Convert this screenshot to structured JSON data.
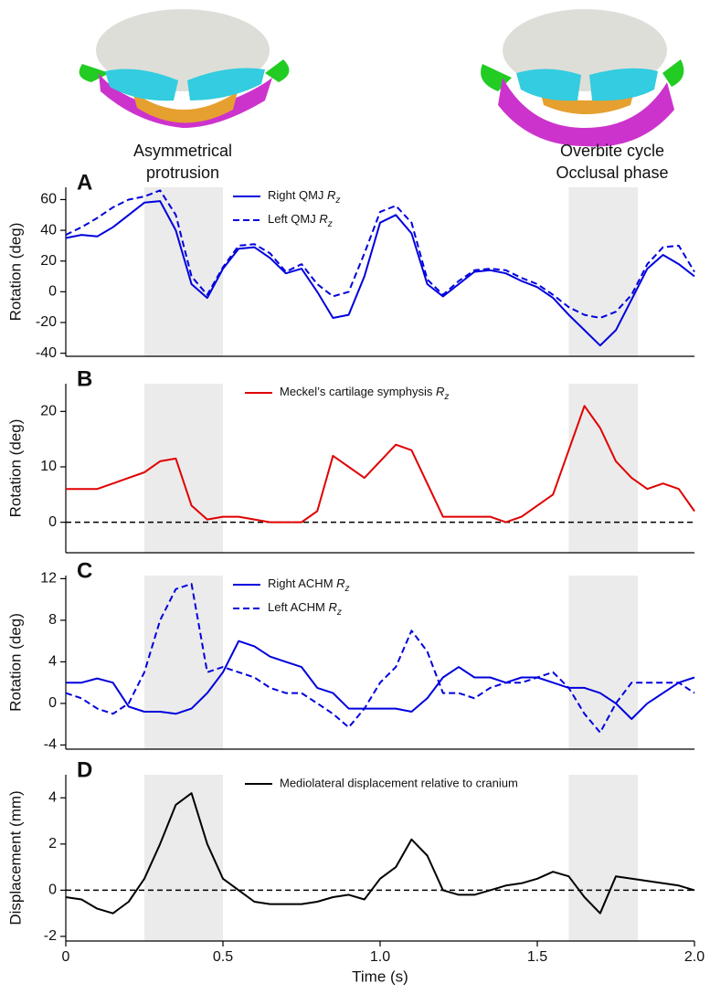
{
  "illustrations": [
    {
      "caption": [
        "Asymmetrical",
        "protrusion"
      ]
    },
    {
      "caption": [
        "Overbite cycle",
        "Occlusal phase"
      ]
    }
  ],
  "chart_data": [
    {
      "type": "line",
      "panel_label": "A",
      "y_label": "Rotation (deg)",
      "legend": "top center",
      "x": [
        0,
        0.05,
        0.1,
        0.15,
        0.2,
        0.25,
        0.3,
        0.35,
        0.4,
        0.45,
        0.5,
        0.55,
        0.6,
        0.65,
        0.7,
        0.75,
        0.8,
        0.85,
        0.9,
        0.95,
        1.0,
        1.05,
        1.1,
        1.15,
        1.2,
        1.25,
        1.3,
        1.35,
        1.4,
        1.45,
        1.5,
        1.55,
        1.6,
        1.65,
        1.7,
        1.75,
        1.8,
        1.85,
        1.9,
        1.95,
        2.0
      ],
      "series": [
        {
          "name": "Right QMJ Rz",
          "color": "#0000dd",
          "style": "solid",
          "values": [
            35,
            37,
            36,
            42,
            50,
            58,
            59,
            40,
            5,
            -4,
            15,
            28,
            29,
            22,
            12,
            15,
            0,
            -17,
            -15,
            10,
            45,
            50,
            38,
            5,
            -3,
            5,
            13,
            14,
            12,
            7,
            3,
            -4,
            -15,
            -25,
            -35,
            -25,
            -5,
            15,
            24,
            18,
            10
          ]
        },
        {
          "name": "Left QMJ Rz",
          "color": "#0000dd",
          "style": "dashed",
          "values": [
            37,
            42,
            48,
            55,
            60,
            62,
            66,
            50,
            10,
            -2,
            16,
            30,
            31,
            25,
            13,
            18,
            5,
            -3,
            0,
            25,
            52,
            56,
            45,
            8,
            -2,
            7,
            14,
            15,
            14,
            9,
            5,
            -2,
            -10,
            -15,
            -17,
            -13,
            -2,
            18,
            29,
            30,
            13
          ]
        }
      ],
      "xlim": [
        0,
        2
      ],
      "ylim": [
        -42,
        68
      ],
      "yticks": [
        -40,
        -20,
        0,
        20,
        40,
        60
      ],
      "highlight_ranges": [
        [
          0.25,
          0.5
        ],
        [
          1.6,
          1.82
        ]
      ]
    },
    {
      "type": "line",
      "panel_label": "B",
      "y_label": "Rotation (deg)",
      "legend": "top center",
      "x": [
        0,
        0.05,
        0.1,
        0.15,
        0.2,
        0.25,
        0.3,
        0.35,
        0.4,
        0.45,
        0.5,
        0.55,
        0.6,
        0.65,
        0.7,
        0.75,
        0.8,
        0.85,
        0.9,
        0.95,
        1.0,
        1.05,
        1.1,
        1.15,
        1.2,
        1.25,
        1.3,
        1.35,
        1.4,
        1.45,
        1.5,
        1.55,
        1.6,
        1.65,
        1.7,
        1.75,
        1.8,
        1.85,
        1.9,
        1.95,
        2.0
      ],
      "series": [
        {
          "name": "Meckel’s cartilage symphysis Rz",
          "color": "#e00000",
          "style": "solid",
          "values": [
            6,
            6,
            6,
            7,
            8,
            9,
            11,
            11.5,
            3,
            0.5,
            1,
            1,
            0.5,
            0,
            0,
            0,
            2,
            12,
            10,
            8,
            11,
            14,
            13,
            7,
            1,
            1,
            1,
            1,
            0,
            1,
            3,
            5,
            13,
            21,
            17,
            11,
            8,
            6,
            7,
            6,
            2
          ]
        }
      ],
      "xlim": [
        0,
        2
      ],
      "ylim": [
        -5.5,
        25
      ],
      "yticks": [
        0,
        10,
        20
      ],
      "reference_line": 0,
      "highlight_ranges": [
        [
          0.25,
          0.5
        ],
        [
          1.6,
          1.82
        ]
      ]
    },
    {
      "type": "line",
      "panel_label": "C",
      "y_label": "Rotation (deg)",
      "legend": "top center",
      "x": [
        0,
        0.05,
        0.1,
        0.15,
        0.2,
        0.25,
        0.3,
        0.35,
        0.4,
        0.45,
        0.5,
        0.55,
        0.6,
        0.65,
        0.7,
        0.75,
        0.8,
        0.85,
        0.9,
        0.95,
        1.0,
        1.05,
        1.1,
        1.15,
        1.2,
        1.25,
        1.3,
        1.35,
        1.4,
        1.45,
        1.5,
        1.55,
        1.6,
        1.65,
        1.7,
        1.75,
        1.8,
        1.85,
        1.9,
        1.95,
        2.0
      ],
      "series": [
        {
          "name": "Right ACHM Rz",
          "color": "#0000dd",
          "style": "solid",
          "values": [
            2,
            2,
            2.4,
            2,
            -0.3,
            -0.8,
            -0.8,
            -1,
            -0.5,
            1,
            3,
            6,
            5.5,
            4.5,
            4,
            3.5,
            1.5,
            1,
            -0.5,
            -0.5,
            -0.5,
            -0.5,
            -0.8,
            0.5,
            2.5,
            3.5,
            2.5,
            2.5,
            2,
            2.5,
            2.5,
            2,
            1.5,
            1.5,
            1,
            0,
            -1.5,
            0,
            1,
            2,
            2.5
          ]
        },
        {
          "name": "Left ACHM Rz",
          "color": "#0000dd",
          "style": "dashed",
          "values": [
            1,
            0.5,
            -0.5,
            -1,
            0,
            3,
            8,
            11,
            11.5,
            3,
            3.5,
            3,
            2.5,
            1.5,
            1,
            1,
            0,
            -1,
            -2.3,
            -0.5,
            2,
            3.5,
            7,
            5,
            1,
            1,
            0.5,
            1.5,
            2,
            2,
            2.5,
            3,
            1.5,
            -1,
            -2.8,
            0,
            2,
            2,
            2,
            2,
            1
          ]
        }
      ],
      "xlim": [
        0,
        2
      ],
      "ylim": [
        -4.4,
        12.3
      ],
      "yticks": [
        -4,
        0,
        4,
        8,
        12
      ],
      "highlight_ranges": [
        [
          0.25,
          0.5
        ],
        [
          1.6,
          1.82
        ]
      ]
    },
    {
      "type": "line",
      "panel_label": "D",
      "y_label": "Displacement (mm)",
      "x_label": "Time (s)",
      "legend": "top center",
      "x": [
        0,
        0.05,
        0.1,
        0.15,
        0.2,
        0.25,
        0.3,
        0.35,
        0.4,
        0.45,
        0.5,
        0.55,
        0.6,
        0.65,
        0.7,
        0.75,
        0.8,
        0.85,
        0.9,
        0.95,
        1.0,
        1.05,
        1.1,
        1.15,
        1.2,
        1.25,
        1.3,
        1.35,
        1.4,
        1.45,
        1.5,
        1.55,
        1.6,
        1.65,
        1.7,
        1.75,
        1.8,
        1.85,
        1.9,
        1.95,
        2.0
      ],
      "series": [
        {
          "name": "Mediolateral displacement relative to cranium",
          "color": "#000000",
          "style": "solid",
          "values": [
            -0.3,
            -0.4,
            -0.8,
            -1,
            -0.5,
            0.5,
            2,
            3.7,
            4.2,
            2,
            0.5,
            0,
            -0.5,
            -0.6,
            -0.6,
            -0.6,
            -0.5,
            -0.3,
            -0.2,
            -0.4,
            0.5,
            1,
            2.2,
            1.5,
            0,
            -0.2,
            -0.2,
            0,
            0.2,
            0.3,
            0.5,
            0.8,
            0.6,
            -0.3,
            -1,
            0.6,
            0.5,
            0.4,
            0.3,
            0.2,
            0
          ]
        }
      ],
      "xlim": [
        0,
        2
      ],
      "xticks": [
        0,
        0.5,
        {
          "value": 1,
          "label": "1.0"
        },
        1.5,
        {
          "value": 2,
          "label": "2.0"
        }
      ],
      "ylim": [
        -2.2,
        5
      ],
      "yticks": [
        -2,
        0,
        2,
        4
      ],
      "reference_line": 0,
      "highlight_ranges": [
        [
          0.25,
          0.5
        ],
        [
          1.6,
          1.82
        ]
      ]
    }
  ]
}
